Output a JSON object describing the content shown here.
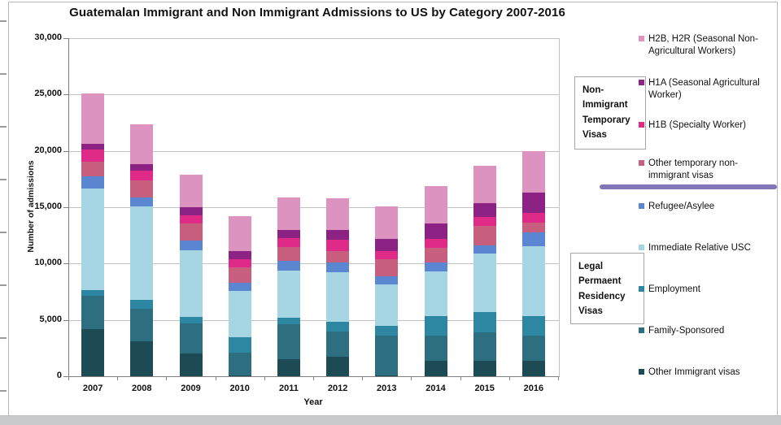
{
  "chart_data": {
    "type": "stacked-bar",
    "title": "Guatemalan Immigrant and Non Immigrant Admissions to US by Category 2007-2016",
    "xlabel": "Year",
    "ylabel": "Number of admissions",
    "ylim": [
      0,
      30000
    ],
    "ytick_step": 5000,
    "ytick_labels": [
      "0",
      "5,000",
      "10,000",
      "15,000",
      "20,000",
      "25,000",
      "30,000"
    ],
    "grid": true,
    "legend_position": "right",
    "categories": [
      "2007",
      "2008",
      "2009",
      "2010",
      "2011",
      "2012",
      "2013",
      "2014",
      "2015",
      "2016"
    ],
    "series": [
      {
        "name": "other_immigrant",
        "label": "Other Immigrant visas",
        "color": "#1d4b55",
        "values": [
          4200,
          3100,
          2000,
          100,
          1500,
          1700,
          100,
          1400,
          1400,
          1400
        ]
      },
      {
        "name": "family_sponsored",
        "label": "Family-Sponsored",
        "color": "#2d6f80",
        "values": [
          2950,
          2900,
          2700,
          2000,
          3100,
          2200,
          3500,
          2200,
          2500,
          2200
        ]
      },
      {
        "name": "employment",
        "label": "Employment",
        "color": "#2d87a2",
        "values": [
          500,
          800,
          600,
          1400,
          600,
          900,
          900,
          1700,
          1800,
          1700
        ]
      },
      {
        "name": "immediate_relative_usc",
        "label": "Immediate Relative USC",
        "color": "#a6d6e3",
        "values": [
          9050,
          8300,
          5900,
          4100,
          4200,
          4400,
          3700,
          4000,
          5200,
          6200
        ]
      },
      {
        "name": "refugee_asylee",
        "label": "Refugee/Asylee",
        "color": "#5b86d2",
        "values": [
          1100,
          800,
          900,
          700,
          900,
          900,
          700,
          800,
          700,
          1200
        ]
      },
      {
        "name": "other_temp_nonimmigrant",
        "label": "Other temporary non-immigrant visas",
        "color": "#c95f7e",
        "values": [
          1300,
          1500,
          1500,
          1400,
          1200,
          1000,
          1500,
          1300,
          1700,
          900
        ]
      },
      {
        "name": "h1b",
        "label": "H1B (Specialty Worker)",
        "color": "#e02a88",
        "values": [
          1100,
          900,
          700,
          700,
          800,
          1000,
          700,
          800,
          800,
          900
        ]
      },
      {
        "name": "h1a",
        "label": "H1A (Seasonal Agricultural Worker)",
        "color": "#8c2283",
        "values": [
          500,
          600,
          700,
          700,
          700,
          900,
          1100,
          1400,
          1200,
          1800
        ]
      },
      {
        "name": "h2b_h2r",
        "label": "H2B, H2R (Seasonal Non-Agricultural Workers)",
        "color": "#dd93c0",
        "values": [
          4500,
          3500,
          2900,
          3100,
          2900,
          2800,
          2900,
          3300,
          3300,
          3700
        ]
      }
    ],
    "legend_order": [
      "h2b_h2r",
      "h1a",
      "h1b",
      "other_temp_nonimmigrant",
      "refugee_asylee",
      "immediate_relative_usc",
      "employment",
      "family_sponsored",
      "other_immigrant"
    ]
  },
  "annotations": {
    "temp_visa_box": {
      "lines": [
        "Non-",
        "Immigrant",
        "Temporary",
        "Visas"
      ]
    },
    "lpr_box": {
      "lines": [
        "Legal",
        "Permaent",
        "Residency",
        "Visas"
      ]
    },
    "divider_color": "#8276b8"
  }
}
